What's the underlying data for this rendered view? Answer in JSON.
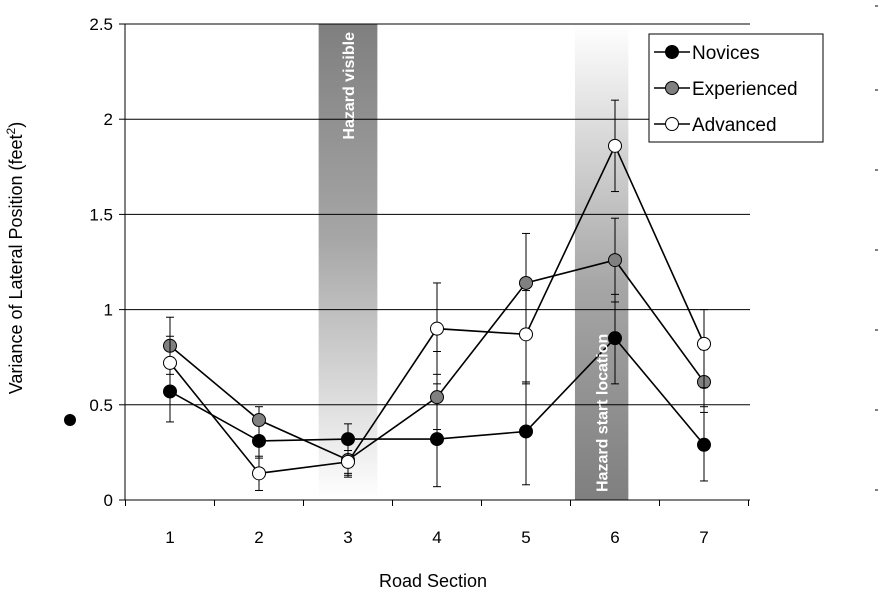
{
  "chart_data": {
    "type": "line",
    "title": "",
    "xlabel": "Road Section",
    "ylabel": "Variance of Lateral Position (feet²)",
    "ylabel_main": "Variance of Lateral Position (feet",
    "ylabel_sup": "2",
    "ylabel_close": ")",
    "categories": [
      "1",
      "2",
      "3",
      "4",
      "5",
      "6",
      "7"
    ],
    "ylim": [
      0,
      2.5
    ],
    "yticks": [
      0,
      0.5,
      1,
      1.5,
      2,
      2.5
    ],
    "ytick_labels": [
      "0",
      "0.5",
      "1",
      "1.5",
      "2",
      "2.5"
    ],
    "grid": true,
    "legend_position": "top-right",
    "series": [
      {
        "name": "Novices",
        "marker_fill": "#000000",
        "values": [
          0.57,
          0.31,
          0.32,
          0.32,
          0.36,
          0.85,
          0.29
        ],
        "err_low": [
          0.41,
          0.22,
          0.13,
          0.07,
          0.08,
          0.61,
          0.1
        ],
        "err_high": [
          0.74,
          0.41,
          0.4,
          0.66,
          0.62,
          1.08,
          0.49
        ]
      },
      {
        "name": "Experienced",
        "marker_fill": "#808080",
        "values": [
          0.81,
          0.42,
          0.21,
          0.54,
          1.14,
          1.26,
          0.62
        ],
        "err_low": [
          0.66,
          0.31,
          0.12,
          0.37,
          0.62,
          1.04,
          0.46
        ],
        "err_high": [
          0.96,
          0.49,
          0.3,
          0.78,
          1.4,
          1.48,
          0.79
        ]
      },
      {
        "name": "Advanced",
        "marker_fill": "#ffffff",
        "values": [
          0.72,
          0.14,
          0.2,
          0.9,
          0.87,
          1.86,
          0.82
        ],
        "err_low": [
          0.58,
          0.05,
          0.14,
          0.61,
          0.61,
          1.62,
          0.59
        ],
        "err_high": [
          0.86,
          0.23,
          0.26,
          1.14,
          1.1,
          2.1,
          1.0
        ]
      }
    ],
    "annotations": [
      {
        "text": "Hazard visible",
        "x_center": 3,
        "half_width": 0.33,
        "fade": "down"
      },
      {
        "text": "Hazard start location",
        "x_center": 5.85,
        "half_width": 0.3,
        "fade": "up"
      }
    ],
    "colors": {
      "line": "#000000",
      "grid": "#000000",
      "band_dark": "#7f7f7f"
    }
  }
}
